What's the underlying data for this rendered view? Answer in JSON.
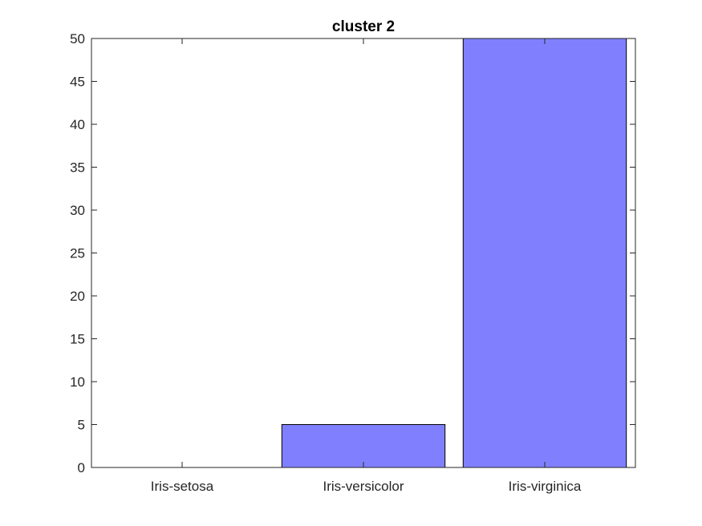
{
  "chart_data": {
    "type": "bar",
    "title": "cluster 2",
    "xlabel": "",
    "ylabel": "",
    "categories": [
      "Iris-setosa",
      "Iris-versicolor",
      "Iris-virginica"
    ],
    "values": [
      0,
      5,
      50
    ],
    "ylim": [
      0,
      50
    ],
    "yticks": [
      "0",
      "5",
      "10",
      "15",
      "20",
      "25",
      "30",
      "35",
      "40",
      "45",
      "50"
    ],
    "grid": false,
    "bar_color": "#8080ff",
    "bar_edge_color": "#000000",
    "axis_color": "#262626"
  }
}
